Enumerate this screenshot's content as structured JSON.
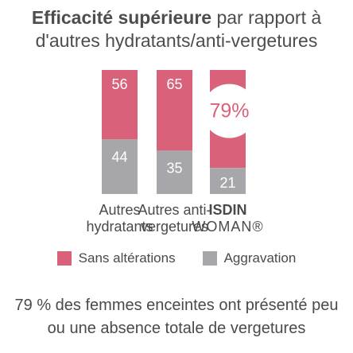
{
  "chart_data": {
    "type": "bar",
    "stacked": true,
    "title_bold": "Efficacité supérieure",
    "title_rest": " par rapport à",
    "title_line2": "d'autres hydratants/anti-vergetures",
    "categories": [
      "Autres hydratants",
      "Autres anti-vergetures",
      "ISDIN WOMAN®"
    ],
    "category_lines": [
      [
        "Autres",
        "hydratants"
      ],
      [
        "Autres anti-",
        "vergetures"
      ],
      [
        "ISDIN",
        "WOMAN®"
      ]
    ],
    "series": [
      {
        "name": "Sans altérations",
        "color": "#d9627a",
        "values": [
          56,
          65,
          79
        ]
      },
      {
        "name": "Aggravation",
        "color": "#a7a7ab",
        "values": [
          44,
          35,
          21
        ]
      }
    ],
    "bar_labels": {
      "top": [
        "56",
        "65",
        "79%"
      ],
      "bottom": [
        "44",
        "35",
        "21"
      ]
    },
    "ylim": [
      0,
      100
    ],
    "legend_position": "bottom"
  },
  "footnote_line1": "79 % des femmes enceintes ont présenté peu",
  "footnote_line2": "ou une absence totale de vergetures"
}
